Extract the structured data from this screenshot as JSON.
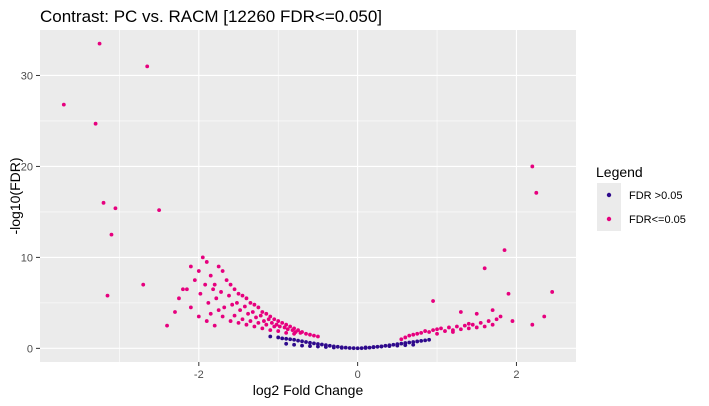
{
  "chart_data": {
    "type": "scatter",
    "title": "Contrast: PC vs. RACM  [12260 FDR<=0.050]",
    "xlabel": "log2 Fold Change",
    "ylabel": "-log10(FDR)",
    "xlim": [
      -4.0,
      2.75
    ],
    "ylim": [
      -1.5,
      35
    ],
    "x_ticks": [
      -2,
      0,
      2
    ],
    "x_tick_labels": [
      "-2",
      "0",
      "2"
    ],
    "y_ticks": [
      0,
      10,
      20,
      30
    ],
    "y_tick_labels": [
      "0",
      "10",
      "20",
      "30"
    ],
    "grid": true,
    "legend": {
      "title": "Legend",
      "placement": "right",
      "entries": [
        {
          "label": "FDR >0.05",
          "color": "#2e0a8c"
        },
        {
          "label": "FDR<=0.05",
          "color": "#e6007e"
        }
      ]
    },
    "series": [
      {
        "name": "FDR >0.05",
        "color": "#2e0a8c",
        "description_points": "dense curve of non-significant genes near the origin",
        "x": [
          -1.1,
          -1.0,
          -0.95,
          -0.9,
          -0.85,
          -0.8,
          -0.75,
          -0.7,
          -0.65,
          -0.6,
          -0.55,
          -0.5,
          -0.45,
          -0.4,
          -0.35,
          -0.3,
          -0.25,
          -0.2,
          -0.15,
          -0.1,
          -0.05,
          0.0,
          0.05,
          0.1,
          0.15,
          0.2,
          0.25,
          0.3,
          0.35,
          0.4,
          0.45,
          0.5,
          0.55,
          0.6,
          0.65,
          0.7,
          0.75,
          0.8,
          0.85,
          0.9,
          -0.9,
          -0.8,
          -0.7,
          -0.6,
          -0.5,
          -0.4,
          -0.3,
          -0.2,
          0.1,
          0.2,
          0.3,
          0.4,
          0.5,
          0.6,
          0.7
        ],
        "y": [
          1.3,
          1.2,
          1.1,
          1.05,
          1.0,
          0.95,
          0.85,
          0.78,
          0.7,
          0.62,
          0.55,
          0.48,
          0.42,
          0.35,
          0.28,
          0.22,
          0.17,
          0.12,
          0.08,
          0.04,
          0.02,
          0.01,
          0.02,
          0.04,
          0.08,
          0.12,
          0.17,
          0.22,
          0.28,
          0.34,
          0.4,
          0.46,
          0.52,
          0.58,
          0.64,
          0.7,
          0.76,
          0.82,
          0.88,
          0.94,
          0.5,
          0.4,
          0.3,
          0.25,
          0.2,
          0.15,
          0.1,
          0.05,
          0.1,
          0.15,
          0.2,
          0.25,
          0.3,
          0.35,
          0.4
        ]
      },
      {
        "name": "FDR<=0.05",
        "color": "#e6007e",
        "x": [
          -3.7,
          -3.3,
          -3.25,
          -3.2,
          -3.15,
          -3.1,
          -3.05,
          -2.65,
          -2.7,
          -2.5,
          -2.2,
          -2.1,
          -2.0,
          -1.95,
          -1.9,
          -1.85,
          -1.8,
          -1.75,
          -1.7,
          -1.65,
          -1.6,
          -1.55,
          -1.5,
          -1.45,
          -1.4,
          -1.35,
          -1.3,
          -1.25,
          -1.2,
          -1.15,
          -1.1,
          -1.05,
          -1.0,
          -0.95,
          -0.9,
          -0.85,
          -0.8,
          -0.75,
          -0.7,
          -0.65,
          -0.6,
          -0.55,
          -0.5,
          -2.3,
          -2.25,
          -2.15,
          -2.05,
          -1.98,
          -1.92,
          -1.88,
          -1.82,
          -1.78,
          -1.72,
          -1.68,
          -1.62,
          -1.58,
          -1.52,
          -1.48,
          -1.42,
          -1.38,
          -1.32,
          -1.28,
          -1.22,
          -1.18,
          -1.12,
          -1.08,
          -1.02,
          -0.98,
          -0.92,
          -0.88,
          -0.82,
          -0.78,
          -0.72,
          -2.0,
          -1.9,
          -1.8,
          -1.7,
          -1.6,
          -1.5,
          -1.4,
          -1.3,
          -1.2,
          -1.1,
          -1.0,
          -0.9,
          -0.8,
          -2.4,
          -2.1,
          -1.85,
          -1.75,
          -1.55,
          -1.45,
          -1.35,
          -1.25,
          -1.15,
          -1.05,
          0.55,
          0.6,
          0.65,
          0.7,
          0.75,
          0.8,
          0.85,
          0.9,
          0.95,
          1.0,
          1.05,
          1.1,
          1.15,
          1.2,
          1.25,
          1.3,
          1.35,
          1.4,
          1.45,
          1.5,
          1.55,
          1.6,
          1.65,
          1.7,
          1.75,
          1.8,
          0.95,
          1.3,
          1.5,
          1.6,
          1.85,
          1.9,
          1.95,
          2.2,
          2.25,
          2.35,
          2.45,
          2.2,
          1.0,
          1.2,
          1.4,
          1.7
        ],
        "y": [
          26.8,
          24.7,
          33.5,
          16.0,
          5.8,
          12.5,
          15.4,
          31.0,
          7.0,
          15.2,
          6.5,
          9.0,
          8.5,
          10.0,
          9.5,
          8.0,
          7.0,
          9.0,
          8.5,
          7.5,
          7.0,
          6.5,
          6.0,
          5.8,
          5.5,
          5.0,
          4.8,
          4.5,
          4.0,
          3.8,
          3.5,
          3.2,
          3.0,
          2.8,
          2.6,
          2.4,
          2.2,
          2.0,
          1.8,
          1.6,
          1.5,
          1.4,
          1.3,
          4.0,
          5.5,
          6.5,
          7.5,
          6.0,
          7.0,
          5.0,
          6.5,
          5.5,
          6.2,
          4.5,
          5.8,
          4.8,
          5.0,
          4.2,
          4.6,
          3.8,
          4.0,
          3.4,
          3.6,
          3.0,
          3.2,
          2.8,
          2.6,
          2.4,
          2.3,
          2.1,
          2.0,
          1.8,
          1.7,
          3.5,
          3.0,
          2.5,
          3.5,
          3.0,
          2.8,
          2.6,
          2.4,
          2.2,
          2.0,
          1.9,
          1.7,
          1.6,
          2.5,
          4.5,
          3.8,
          4.2,
          3.6,
          3.2,
          3.0,
          2.8,
          2.6,
          2.4,
          1.0,
          1.2,
          1.4,
          1.5,
          1.6,
          1.7,
          1.9,
          1.8,
          2.0,
          2.1,
          2.2,
          1.9,
          2.3,
          2.0,
          2.4,
          2.1,
          2.5,
          2.2,
          2.6,
          2.3,
          2.8,
          2.4,
          3.0,
          2.6,
          3.2,
          3.5,
          5.2,
          4.0,
          3.8,
          8.8,
          10.8,
          6.0,
          3.0,
          20.0,
          17.1,
          3.5,
          6.2,
          2.6,
          1.6,
          1.8,
          2.7,
          4.2
        ]
      }
    ]
  }
}
